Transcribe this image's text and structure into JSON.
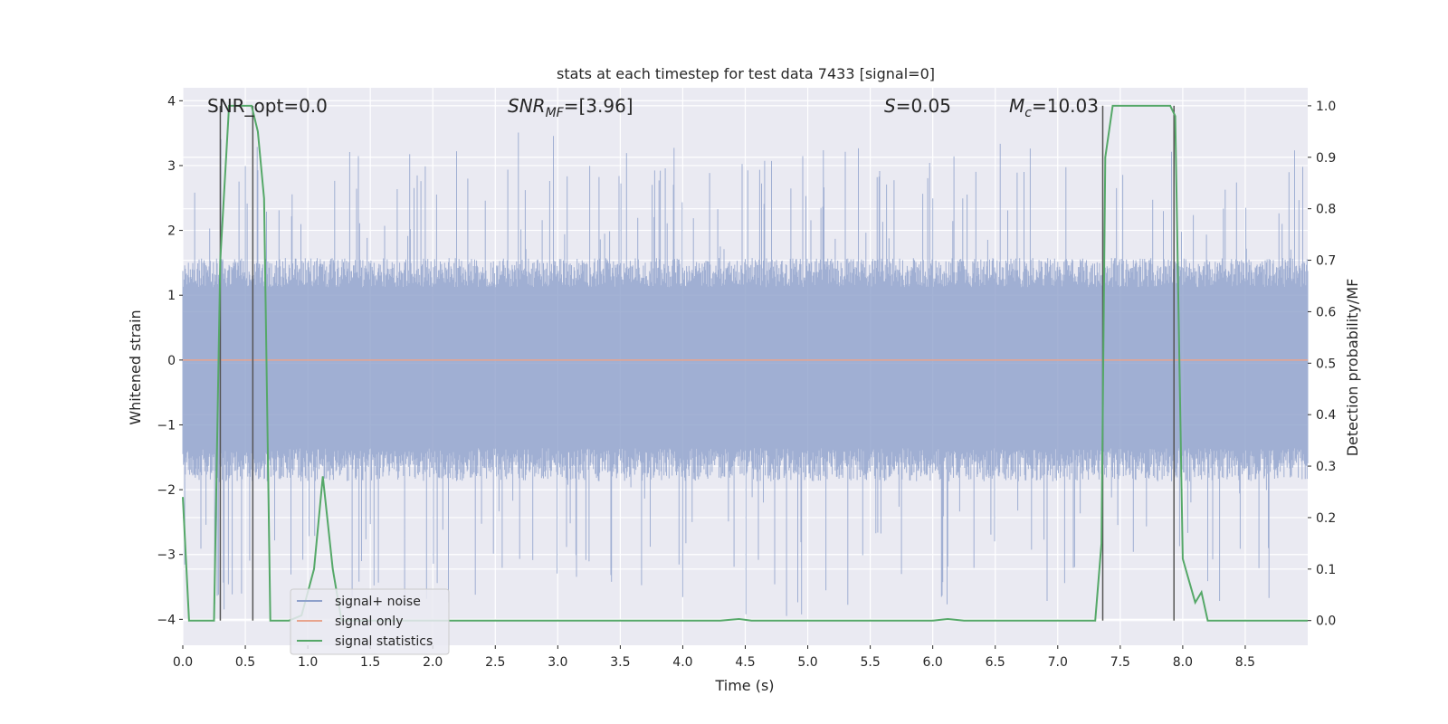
{
  "chart_data": {
    "type": "line",
    "title": "stats at each timestep for test data 7433 [signal=0]",
    "xlabel": "Time (s)",
    "ylabel": "Whitened strain",
    "y2label": "Detection probability/MF",
    "xlim": [
      0,
      9.0
    ],
    "ylim": [
      -4.4,
      4.2
    ],
    "y2lim": [
      -0.048,
      1.035
    ],
    "xticks": [
      0.0,
      0.5,
      1.0,
      1.5,
      2.0,
      2.5,
      3.0,
      3.5,
      4.0,
      4.5,
      5.0,
      5.5,
      6.0,
      6.5,
      7.0,
      7.5,
      8.0,
      8.5
    ],
    "xtick_labels": [
      "0.0",
      "0.5",
      "1.0",
      "1.5",
      "2.0",
      "2.5",
      "3.0",
      "3.5",
      "4.0",
      "4.5",
      "5.0",
      "5.5",
      "6.0",
      "6.5",
      "7.0",
      "7.5",
      "8.0",
      "8.5"
    ],
    "yticks": [
      -4,
      -3,
      -2,
      -1,
      0,
      1,
      2,
      3,
      4
    ],
    "ytick_labels": [
      "−4",
      "−3",
      "−2",
      "−1",
      "0",
      "1",
      "2",
      "3",
      "4"
    ],
    "y2ticks": [
      0.0,
      0.1,
      0.2,
      0.3,
      0.4,
      0.5,
      0.6,
      0.7,
      0.8,
      0.9,
      1.0
    ],
    "y2tick_labels": [
      "0.0",
      "0.1",
      "0.2",
      "0.3",
      "0.4",
      "0.5",
      "0.6",
      "0.7",
      "0.8",
      "0.9",
      "1.0"
    ],
    "annotations": {
      "snr_opt": "SNR_opt=0.0",
      "snr_mf_sym": "SNR",
      "snr_mf_sub": "MF",
      "snr_mf_val": "=[3.96]",
      "s_sym": "S",
      "s_val": "=0.05",
      "mc_sym": "M",
      "mc_sub": "c",
      "mc_val": "=10.03"
    },
    "series": [
      {
        "name": "signal+ noise",
        "color": "#8da0cb",
        "style": "dense noise, envelope roughly -1.7 to +1.5 with spikes to about +3.5 / -4",
        "envelope_upper": 1.5,
        "envelope_lower": -1.7
      },
      {
        "name": "signal only",
        "color": "#e8a48e",
        "value": 0
      },
      {
        "name": "signal statistics",
        "color": "#55a868",
        "axis": "right",
        "x": [
          0.0,
          0.05,
          0.25,
          0.3,
          0.37,
          0.55,
          0.6,
          0.65,
          0.7,
          0.85,
          0.95,
          1.05,
          1.12,
          1.2,
          1.27,
          1.4,
          4.3,
          4.45,
          4.55,
          6.0,
          6.12,
          6.25,
          7.3,
          7.35,
          7.38,
          7.44,
          7.9,
          7.94,
          8.0,
          8.1,
          8.15,
          8.2,
          8.25,
          9.0
        ],
        "values": [
          0.24,
          0.0,
          0.0,
          0.7,
          1.0,
          1.0,
          0.95,
          0.82,
          0.0,
          0.0,
          0.01,
          0.1,
          0.28,
          0.1,
          0.0,
          0.0,
          0.0,
          0.003,
          0.0,
          0.0,
          0.003,
          0.0,
          0.0,
          0.15,
          0.9,
          1.0,
          1.0,
          0.98,
          0.12,
          0.035,
          0.055,
          0.0,
          0.0,
          0.0
        ]
      }
    ],
    "vertical_markers": [
      0.3,
      0.56,
      7.36,
      7.93
    ],
    "legend_location": "lower-left"
  }
}
